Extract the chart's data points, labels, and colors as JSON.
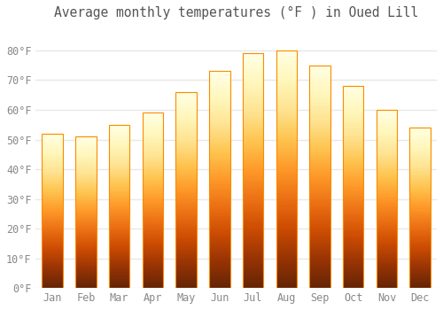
{
  "title": "Average monthly temperatures (°F ) in Oued Lill",
  "months": [
    "Jan",
    "Feb",
    "Mar",
    "Apr",
    "May",
    "Jun",
    "Jul",
    "Aug",
    "Sep",
    "Oct",
    "Nov",
    "Dec"
  ],
  "values": [
    52,
    51,
    55,
    59,
    66,
    73,
    79,
    80,
    75,
    68,
    60,
    54
  ],
  "bar_color_main": "#FFA726",
  "bar_color_light": "#FFD54F",
  "bar_edge_color": "#FB8C00",
  "ylim": [
    0,
    88
  ],
  "yticks": [
    0,
    10,
    20,
    30,
    40,
    50,
    60,
    70,
    80
  ],
  "ytick_labels": [
    "0°F",
    "10°F",
    "20°F",
    "30°F",
    "40°F",
    "50°F",
    "60°F",
    "70°F",
    "80°F"
  ],
  "background_color": "#FFFFFF",
  "grid_color": "#E8E8E8",
  "title_fontsize": 10.5,
  "tick_fontsize": 8.5,
  "tick_color": "#888888",
  "font_family": "monospace"
}
